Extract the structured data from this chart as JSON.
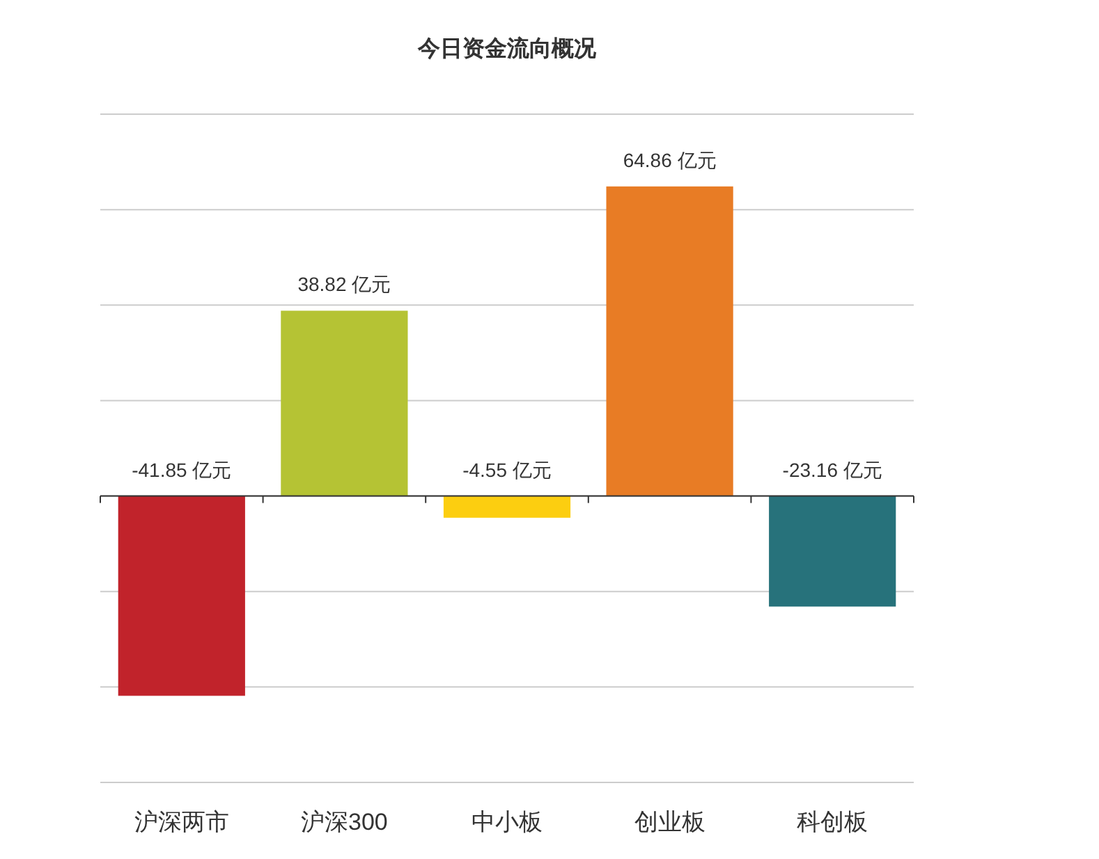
{
  "chart_data": {
    "type": "bar",
    "title": "今日资金流向概况",
    "categories": [
      "沪深两市",
      "沪深300",
      "中小板",
      "创业板",
      "科创板"
    ],
    "values": [
      -41.85,
      38.82,
      -4.55,
      64.86,
      -23.16
    ],
    "colors": [
      "#c1232b",
      "#b5c334",
      "#fcce10",
      "#e87c25",
      "#27727b"
    ],
    "value_labels": [
      "-41.85 亿元",
      "38.82 亿元",
      "-4.55 亿元",
      "64.86 亿元",
      "-23.16 亿元"
    ],
    "ylim": [
      -60,
      80
    ],
    "yticks": [
      {
        "value": -60,
        "label": null
      },
      {
        "value": -40,
        "label": null
      },
      {
        "value": -20,
        "label": null
      },
      {
        "value": 0,
        "label": null
      },
      {
        "value": 20,
        "label": null
      },
      {
        "value": 40,
        "label": null
      },
      {
        "value": 60,
        "label": null
      },
      {
        "value": 80,
        "label": null
      }
    ],
    "grid": "y"
  }
}
